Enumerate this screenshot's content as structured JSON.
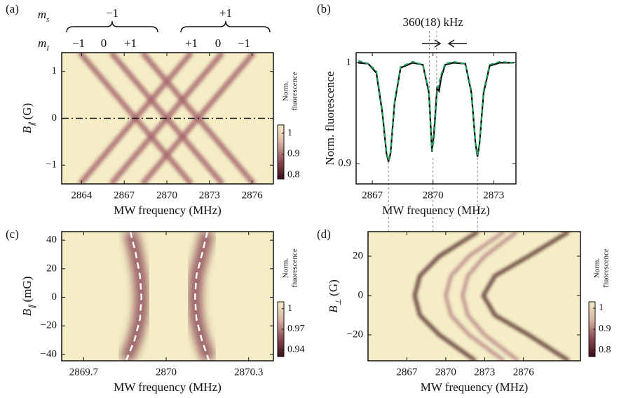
{
  "chart_data": [
    {
      "type": "heatmap",
      "label": "(a)",
      "x_label": "MW frequency (MHz)",
      "y_label": {
        "symbol": "B",
        "subscript": "∥",
        "unit": "(G)"
      },
      "xlim": [
        2862.6,
        2877.5
      ],
      "ylim": [
        -1.4,
        1.4
      ],
      "xticks": [
        2864,
        2867,
        2870,
        2873,
        2876
      ],
      "yticks": [
        {
          "value": -1,
          "label": "−1"
        },
        0,
        1
      ],
      "hline": 0,
      "ms_label": {
        "symbol": "m",
        "subscript": "s"
      },
      "ms_groups": [
        "−1",
        "+1"
      ],
      "mi_label": {
        "symbol": "m",
        "subscript": "I"
      },
      "mi_values": [
        "−1",
        "0",
        "+1",
        "+1",
        "0",
        "−1"
      ],
      "colorbar": {
        "label": [
          "Norm.",
          "fluorescence"
        ],
        "lim": [
          0.78,
          1.04
        ],
        "ticks": [
          0.8,
          0.9,
          1
        ],
        "colors": [
          "#3b0d18",
          "#8c4a55",
          "#d9b3a3",
          "#f4edc6"
        ]
      },
      "series": [
        {
          "color": "#a5646c",
          "x": [
            2871.72,
            2863.88
          ],
          "y": [
            -1.4,
            1.4
          ]
        },
        {
          "color": "#a5646c",
          "x": [
            2863.88,
            2871.72
          ],
          "y": [
            -1.4,
            1.4
          ]
        },
        {
          "color": "#a5646c",
          "x": [
            2873.92,
            2866.08
          ],
          "y": [
            -1.4,
            1.4
          ]
        },
        {
          "color": "#a5646c",
          "x": [
            2866.08,
            2873.92
          ],
          "y": [
            -1.4,
            1.4
          ]
        },
        {
          "color": "#a5646c",
          "x": [
            2876.12,
            2868.28
          ],
          "y": [
            -1.4,
            1.4
          ]
        },
        {
          "color": "#a5646c",
          "x": [
            2868.28,
            2876.12
          ],
          "y": [
            -1.4,
            1.4
          ]
        }
      ]
    },
    {
      "type": "line",
      "label": "(b)",
      "x_label": "MW frequency (MHz)",
      "y_label": "Norm. fluorescence",
      "xlim": [
        2866.2,
        2874.1
      ],
      "ylim": [
        0.88,
        1.01
      ],
      "xticks": [
        2867,
        2870,
        2873
      ],
      "yticks": [
        0.9,
        1
      ],
      "annotation": "360(18) kHz",
      "split_lines": [
        2869.82,
        2870.18
      ],
      "guides": [
        2867.8,
        2870,
        2872.2
      ],
      "x": [
        2866.3,
        2866.8,
        2867.2,
        2867.5,
        2867.7,
        2867.8,
        2867.9,
        2868.1,
        2868.4,
        2869.0,
        2869.5,
        2869.8,
        2869.95,
        2870.05,
        2870.2,
        2870.3,
        2870.4,
        2870.6,
        2871.0,
        2871.6,
        2871.9,
        2872.1,
        2872.2,
        2872.3,
        2872.5,
        2872.8,
        2873.3,
        2874.0
      ],
      "series": [
        {
          "color": "#000000",
          "linestyle": "solid",
          "values": [
            1,
            0.999,
            0.99,
            0.95,
            0.91,
            0.902,
            0.91,
            0.96,
            0.995,
            1,
            0.998,
            0.97,
            0.912,
            0.93,
            0.975,
            0.972,
            0.985,
            0.998,
            1,
            0.999,
            0.97,
            0.92,
            0.907,
            0.92,
            0.97,
            0.997,
            1,
            1
          ]
        },
        {
          "color": "#1fa35a",
          "linestyle": "dashed",
          "values": [
            1.002,
            0.999,
            0.992,
            0.952,
            0.912,
            0.903,
            0.912,
            0.962,
            0.996,
            1.001,
            0.998,
            0.972,
            0.913,
            0.925,
            0.97,
            0.98,
            0.988,
            0.999,
            1.001,
            0.999,
            0.972,
            0.921,
            0.908,
            0.921,
            0.972,
            0.998,
            1.001,
            1
          ]
        }
      ]
    },
    {
      "type": "heatmap",
      "label": "(c)",
      "x_label": "MW frequency (MHz)",
      "y_label": {
        "symbol": "B",
        "subscript": "∥",
        "unit": "(mG)"
      },
      "xlim": [
        2869.62,
        2870.39
      ],
      "ylim": [
        -44.5,
        46
      ],
      "xticks": [
        2869.7,
        2870,
        2870.3
      ],
      "yticks": [
        {
          "value": -40,
          "label": "−40"
        },
        {
          "value": -20,
          "label": "−20"
        },
        0,
        20,
        40
      ],
      "colorbar": {
        "label": [
          "Norm.",
          "fluorescence"
        ],
        "lim": [
          0.93,
          1.01
        ],
        "ticks": [
          0.94,
          0.97,
          1
        ],
        "colors": [
          "#3b0d18",
          "#8c4a55",
          "#d9b3a3",
          "#f4edc6"
        ]
      },
      "series": [
        {
          "color": "#ffffff",
          "linestyle": "dashed",
          "x": [
            2869.87,
            2869.89,
            2869.905,
            2869.91,
            2869.905,
            2869.885,
            2869.855
          ],
          "y": [
            46,
            30,
            15,
            0,
            -15,
            -30,
            -44
          ]
        },
        {
          "color": "#ffffff",
          "linestyle": "dashed",
          "x": [
            2870.15,
            2870.13,
            2870.11,
            2870.105,
            2870.11,
            2870.13,
            2870.155
          ],
          "y": [
            46,
            30,
            15,
            0,
            -15,
            -30,
            -44
          ]
        }
      ]
    },
    {
      "type": "heatmap",
      "label": "(d)",
      "x_label": "MW frequency (MHz)",
      "y_label": {
        "symbol": "B",
        "subscript": "⊥",
        "unit": "(G)"
      },
      "xlim": [
        2864,
        2880.4
      ],
      "ylim": [
        -33.2,
        32.5
      ],
      "xticks": [
        2867,
        2870,
        2873,
        2876
      ],
      "yticks": [
        {
          "value": -20,
          "label": "−20"
        },
        0,
        20
      ],
      "colorbar": {
        "label": [
          "Norm.",
          "fluorescence"
        ],
        "lim": [
          0.77,
          1.03
        ],
        "ticks": [
          0.8,
          0.9,
          1
        ],
        "colors": [
          "#3b0d18",
          "#8c4a55",
          "#d9b3a3",
          "#f4edc6"
        ]
      },
      "series": [
        {
          "color": "#3b0d18",
          "x": [
            2872.5,
            2869.5,
            2868.0,
            2867.6,
            2868.0,
            2869.5,
            2872.3
          ],
          "y": [
            32.5,
            20,
            10,
            0,
            -10,
            -20,
            -33.2
          ]
        },
        {
          "color": "#b07a80",
          "x": [
            2874.5,
            2871.8,
            2870.4,
            2870.0,
            2870.4,
            2871.8,
            2874.5
          ],
          "y": [
            32.5,
            20,
            10,
            0,
            -10,
            -20,
            -33.2
          ]
        },
        {
          "color": "#b07a80",
          "x": [
            2875.5,
            2873.0,
            2871.7,
            2871.3,
            2871.7,
            2873.0,
            2875.6
          ],
          "y": [
            32.5,
            20,
            10,
            0,
            -10,
            -20,
            -33.2
          ]
        },
        {
          "color": "#3b0d18",
          "x": [
            2879.5,
            2876.4,
            2873.8,
            2872.9,
            2873.8,
            2876.4,
            2879.5
          ],
          "y": [
            32.5,
            20,
            10,
            0,
            -10,
            -20,
            -33.2
          ]
        }
      ]
    }
  ]
}
